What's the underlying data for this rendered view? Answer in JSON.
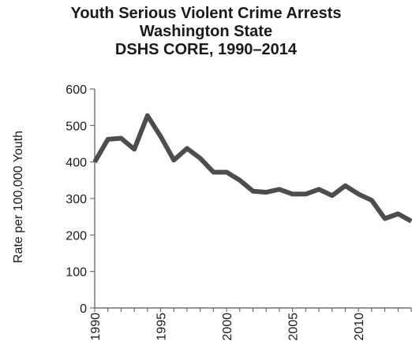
{
  "chart_data": {
    "type": "line",
    "title_lines": [
      "Youth  Serious Violent Crime Arrests",
      "Washington State",
      "DSHS CORE, 1990–2014"
    ],
    "ylabel": "Rate per 100,000 Youth",
    "xlabel": "",
    "ylim": [
      0,
      600
    ],
    "yticks": [
      0,
      100,
      200,
      300,
      400,
      500,
      600
    ],
    "xlim": [
      1990,
      2014
    ],
    "xticks": [
      1990,
      1995,
      2000,
      2005,
      2010
    ],
    "grid": false,
    "series": [
      {
        "color": "#4d4d4d",
        "x": [
          1990,
          1991,
          1992,
          1993,
          1994,
          1995,
          1996,
          1997,
          1998,
          1999,
          2000,
          2001,
          2002,
          2003,
          2004,
          2005,
          2006,
          2007,
          2008,
          2009,
          2010,
          2011,
          2012,
          2013,
          2014
        ],
        "y": [
          400,
          462,
          465,
          435,
          527,
          470,
          405,
          437,
          410,
          372,
          372,
          350,
          320,
          317,
          325,
          312,
          312,
          325,
          308,
          335,
          312,
          295,
          245,
          258,
          238
        ]
      }
    ]
  }
}
